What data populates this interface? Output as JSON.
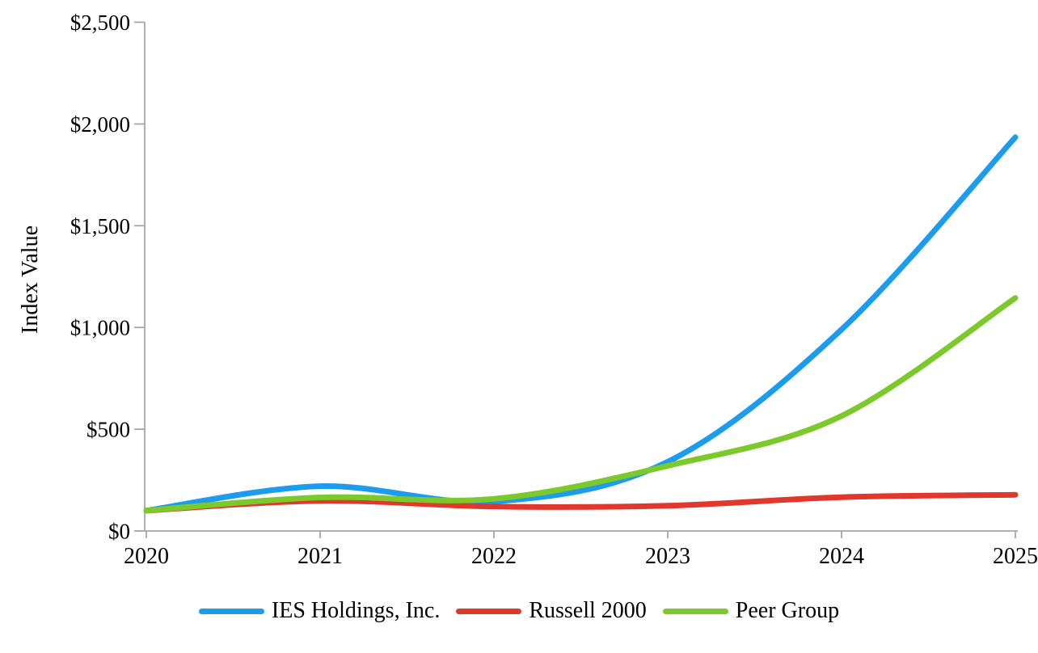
{
  "chart_data": {
    "type": "line",
    "title": "",
    "xlabel": "",
    "ylabel": "Index Value",
    "smooth": true,
    "grid": false,
    "legend_position": "bottom",
    "categories": [
      "2020",
      "2021",
      "2022",
      "2023",
      "2024",
      "2025"
    ],
    "y_axis": {
      "ticks": [
        {
          "value": 0,
          "label": "$0"
        },
        {
          "value": 500,
          "label": "$500"
        },
        {
          "value": 1000,
          "label": "$1,000"
        },
        {
          "value": 1500,
          "label": "$1,500"
        },
        {
          "value": 2000,
          "label": "$2,000"
        },
        {
          "value": 2500,
          "label": "$2,500"
        }
      ],
      "ylim": [
        0,
        2500
      ]
    },
    "series": [
      {
        "name": "IES Holdings, Inc.",
        "color": "#1b9cec",
        "values": [
          100,
          220,
          145,
          340,
          990,
          1935
        ]
      },
      {
        "name": "Russell 2000",
        "color": "#e1382d",
        "values": [
          100,
          148,
          120,
          124,
          166,
          178
        ]
      },
      {
        "name": "Peer Group",
        "color": "#7cc92c",
        "values": [
          100,
          165,
          158,
          320,
          565,
          1145
        ]
      }
    ],
    "colors": {
      "axis": "#a6a6a6",
      "text": "#000000",
      "background": "#ffffff"
    }
  }
}
